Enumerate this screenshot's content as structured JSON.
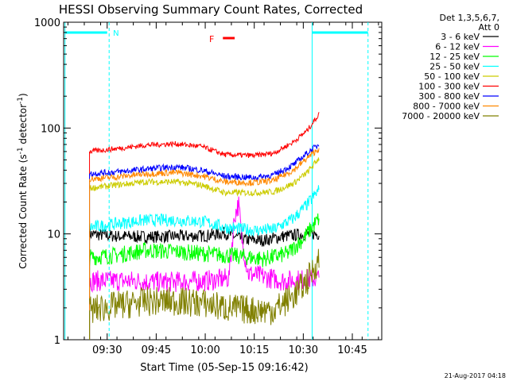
{
  "chart_data": {
    "type": "line",
    "title": "HESSI Observing Summary Count Rates, Corrected",
    "xlabel": "Start Time (05-Sep-15 09:16:42)",
    "ylabel_main": "Corrected Count Rate (s",
    "ylabel_sup1": "-1",
    "ylabel_mid": " detector",
    "ylabel_sup2": "-1",
    "ylabel_end": ")",
    "y_scale": "log",
    "xlim_min": [
      9.278,
      10.9
    ],
    "ylim": [
      1,
      1000
    ],
    "x_ticks": [
      {
        "label": "09:30",
        "t": 9.5
      },
      {
        "label": "09:45",
        "t": 9.75
      },
      {
        "label": "10:00",
        "t": 10.0
      },
      {
        "label": "10:15",
        "t": 10.25
      },
      {
        "label": "10:30",
        "t": 10.5
      },
      {
        "label": "10:45",
        "t": 10.75
      }
    ],
    "y_ticks": [
      {
        "label": "1",
        "v": 1
      },
      {
        "label": "10",
        "v": 10
      },
      {
        "label": "100",
        "v": 100
      },
      {
        "label": "1000",
        "v": 1000
      }
    ],
    "legend_header": [
      "Det 1,3,5,6,7,",
      "Att 0"
    ],
    "legend_placement": "right",
    "series": [
      {
        "name": "3 - 6 keV",
        "color": "#000000",
        "points": [
          [
            9.41,
            10
          ],
          [
            9.55,
            9.5
          ],
          [
            9.7,
            9.4
          ],
          [
            9.85,
            9.5
          ],
          [
            10.0,
            9.6
          ],
          [
            10.1,
            10.2
          ],
          [
            10.2,
            8.8
          ],
          [
            10.3,
            8.7
          ],
          [
            10.4,
            9.5
          ],
          [
            10.52,
            10.0
          ],
          [
            10.58,
            10.0
          ]
        ]
      },
      {
        "name": "6 - 12 keV",
        "color": "#ff00ff",
        "points": [
          [
            9.41,
            3.6
          ],
          [
            9.6,
            3.6
          ],
          [
            9.8,
            3.5
          ],
          [
            10.0,
            3.6
          ],
          [
            10.12,
            3.8
          ],
          [
            10.15,
            15
          ],
          [
            10.17,
            19
          ],
          [
            10.19,
            8
          ],
          [
            10.22,
            4.2
          ],
          [
            10.4,
            3.6
          ],
          [
            10.58,
            3.8
          ]
        ]
      },
      {
        "name": "12 - 25 keV",
        "color": "#00ff00",
        "points": [
          [
            9.41,
            6.0
          ],
          [
            9.55,
            6.3
          ],
          [
            9.7,
            7.0
          ],
          [
            9.85,
            6.8
          ],
          [
            10.0,
            6.5
          ],
          [
            10.15,
            6.2
          ],
          [
            10.3,
            5.8
          ],
          [
            10.42,
            6.5
          ],
          [
            10.5,
            9.0
          ],
          [
            10.58,
            14
          ]
        ]
      },
      {
        "name": "25 - 50 keV",
        "color": "#00ffff",
        "points": [
          [
            9.41,
            11.5
          ],
          [
            9.55,
            12.5
          ],
          [
            9.7,
            13.5
          ],
          [
            9.85,
            13.5
          ],
          [
            10.0,
            13.0
          ],
          [
            10.1,
            11.5
          ],
          [
            10.25,
            10.8
          ],
          [
            10.35,
            11.0
          ],
          [
            10.45,
            14
          ],
          [
            10.52,
            19
          ],
          [
            10.58,
            26
          ]
        ]
      },
      {
        "name": "50 - 100 keV",
        "color": "#cccc00",
        "points": [
          [
            9.41,
            27
          ],
          [
            9.55,
            29
          ],
          [
            9.7,
            31
          ],
          [
            9.85,
            31
          ],
          [
            9.98,
            29
          ],
          [
            10.1,
            24.5
          ],
          [
            10.25,
            24.5
          ],
          [
            10.35,
            25
          ],
          [
            10.45,
            30
          ],
          [
            10.52,
            38
          ],
          [
            10.58,
            52
          ]
        ]
      },
      {
        "name": "100 - 300 keV",
        "color": "#ff0000",
        "points": [
          [
            9.41,
            60
          ],
          [
            9.55,
            64
          ],
          [
            9.7,
            69
          ],
          [
            9.85,
            71
          ],
          [
            9.98,
            67
          ],
          [
            10.1,
            56
          ],
          [
            10.25,
            55
          ],
          [
            10.35,
            58
          ],
          [
            10.45,
            74
          ],
          [
            10.52,
            95
          ],
          [
            10.58,
            135
          ]
        ]
      },
      {
        "name": "300 - 800 keV",
        "color": "#0000ff",
        "points": [
          [
            9.41,
            37
          ],
          [
            9.55,
            38.5
          ],
          [
            9.7,
            41
          ],
          [
            9.85,
            43
          ],
          [
            9.98,
            40
          ],
          [
            10.1,
            35
          ],
          [
            10.25,
            34
          ],
          [
            10.35,
            36
          ],
          [
            10.45,
            45
          ],
          [
            10.52,
            58
          ],
          [
            10.58,
            70
          ]
        ]
      },
      {
        "name": "800 - 7000 keV",
        "color": "#ff8800",
        "points": [
          [
            9.41,
            33
          ],
          [
            9.55,
            34.5
          ],
          [
            9.7,
            37
          ],
          [
            9.85,
            38
          ],
          [
            9.98,
            35.5
          ],
          [
            10.1,
            31
          ],
          [
            10.25,
            30.5
          ],
          [
            10.35,
            32
          ],
          [
            10.45,
            40
          ],
          [
            10.52,
            52
          ],
          [
            10.58,
            64
          ]
        ]
      },
      {
        "name": "7000 - 20000 keV",
        "color": "#808000",
        "points": [
          [
            9.41,
            1.9
          ],
          [
            9.55,
            2.1
          ],
          [
            9.7,
            2.3
          ],
          [
            9.85,
            2.3
          ],
          [
            10.0,
            2.2
          ],
          [
            10.1,
            2.0
          ],
          [
            10.25,
            1.9
          ],
          [
            10.35,
            1.9
          ],
          [
            10.45,
            2.6
          ],
          [
            10.52,
            3.6
          ],
          [
            10.58,
            5.8
          ]
        ]
      }
    ],
    "annotations": [
      {
        "label": "N",
        "color": "#00ffff"
      },
      {
        "label": "F",
        "color": "#ff0000"
      }
    ],
    "timestamp": "21-Aug-2017 04:18"
  }
}
